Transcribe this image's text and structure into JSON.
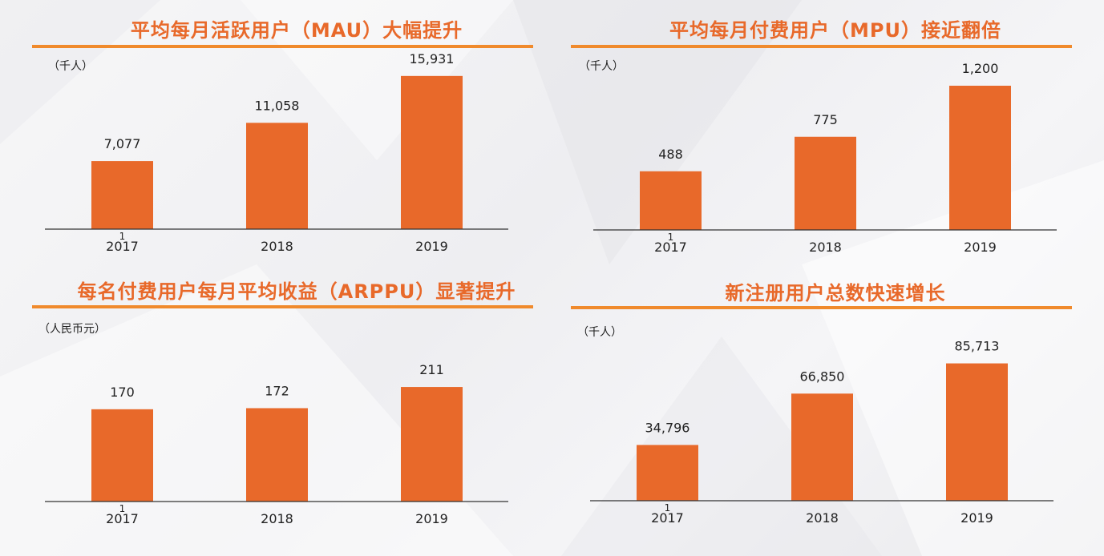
{
  "colors": {
    "bar": "#e8692a",
    "title": "#e8692a",
    "rule": "#f08a2c",
    "axis": "#333333",
    "text": "#222222"
  },
  "panels": [
    {
      "title": "平均每月活跃用户（MAU）大幅提升",
      "unit": "（千人）"
    },
    {
      "title": "平均每月付费用户（MPU）接近翻倍",
      "unit": "（千人）"
    },
    {
      "title": "每名付费用户每月平均收益（ARPPU）显著提升",
      "unit": "（人民币元）"
    },
    {
      "title": "新注册用户总数快速增长",
      "unit": "（千人）"
    }
  ],
  "chart_data": [
    {
      "type": "bar",
      "title": "平均每月活跃用户（MAU）大幅提升",
      "ylabel": "（千人）",
      "categories": [
        "2017",
        "2018",
        "2019"
      ],
      "values": [
        7077,
        11058,
        15931
      ],
      "labels": [
        "7,077",
        "11,058",
        "15,931"
      ],
      "ylim": [
        0,
        20000
      ],
      "stray_tick_label": "1"
    },
    {
      "type": "bar",
      "title": "平均每月付费用户（MPU）接近翻倍",
      "ylabel": "（千人）",
      "categories": [
        "2017",
        "2018",
        "2019"
      ],
      "values": [
        488,
        775,
        1200
      ],
      "labels": [
        "488",
        "775",
        "1,200"
      ],
      "ylim": [
        0,
        1400
      ],
      "stray_tick_label": "1"
    },
    {
      "type": "bar",
      "title": "每名付费用户每月平均收益（ARPPU）显著提升",
      "ylabel": "（人民币元）",
      "categories": [
        "2017",
        "2018",
        "2019"
      ],
      "values": [
        170,
        172,
        211
      ],
      "labels": [
        "170",
        "172",
        "211"
      ],
      "ylim": [
        0,
        310
      ],
      "stray_tick_label": "1"
    },
    {
      "type": "bar",
      "title": "新注册用户总数快速增长",
      "ylabel": "（千人）",
      "categories": [
        "2017",
        "2018",
        "2019"
      ],
      "values": [
        34796,
        66850,
        85713
      ],
      "labels": [
        "34,796",
        "66,850",
        "85,713"
      ],
      "ylim": [
        0,
        110000
      ],
      "stray_tick_label": "1"
    }
  ]
}
